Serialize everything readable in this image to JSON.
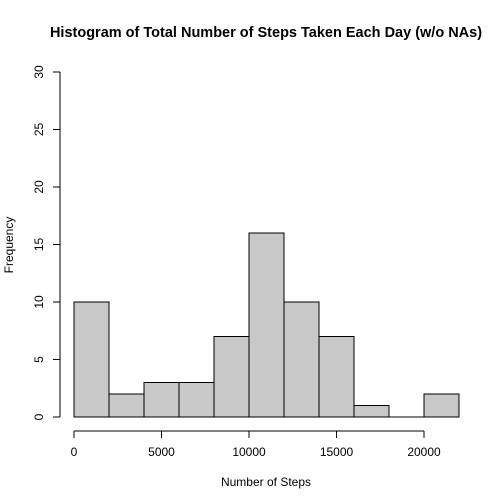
{
  "chart_data": {
    "type": "bar",
    "title": "Histogram of Total Number of Steps Taken Each Day (w/o NAs)",
    "xlabel": "Number of Steps",
    "ylabel": "Frequency",
    "bins": [
      {
        "from": 0,
        "to": 2000,
        "count": 10
      },
      {
        "from": 2000,
        "to": 4000,
        "count": 2
      },
      {
        "from": 4000,
        "to": 6000,
        "count": 3
      },
      {
        "from": 6000,
        "to": 8000,
        "count": 3
      },
      {
        "from": 8000,
        "to": 10000,
        "count": 7
      },
      {
        "from": 10000,
        "to": 12000,
        "count": 16
      },
      {
        "from": 12000,
        "to": 14000,
        "count": 10
      },
      {
        "from": 14000,
        "to": 16000,
        "count": 7
      },
      {
        "from": 16000,
        "to": 18000,
        "count": 1
      },
      {
        "from": 18000,
        "to": 20000,
        "count": 0
      },
      {
        "from": 20000,
        "to": 22000,
        "count": 2
      }
    ],
    "xlim": [
      0,
      22000
    ],
    "ylim": [
      0,
      30
    ],
    "x_ticks": [
      {
        "value": 0,
        "label": "0"
      },
      {
        "value": 5000,
        "label": "5000"
      },
      {
        "value": 10000,
        "label": "10000"
      },
      {
        "value": 15000,
        "label": "15000"
      },
      {
        "value": 20000,
        "label": "20000"
      }
    ],
    "y_ticks": [
      {
        "value": 0,
        "label": "0"
      },
      {
        "value": 5,
        "label": "5"
      },
      {
        "value": 10,
        "label": "10"
      },
      {
        "value": 15,
        "label": "15"
      },
      {
        "value": 20,
        "label": "20"
      },
      {
        "value": 25,
        "label": "25"
      },
      {
        "value": 30,
        "label": "30"
      }
    ],
    "bar_color": "#c8c8c8",
    "bar_border_color": "#000000",
    "grid": false,
    "legend": "none"
  }
}
